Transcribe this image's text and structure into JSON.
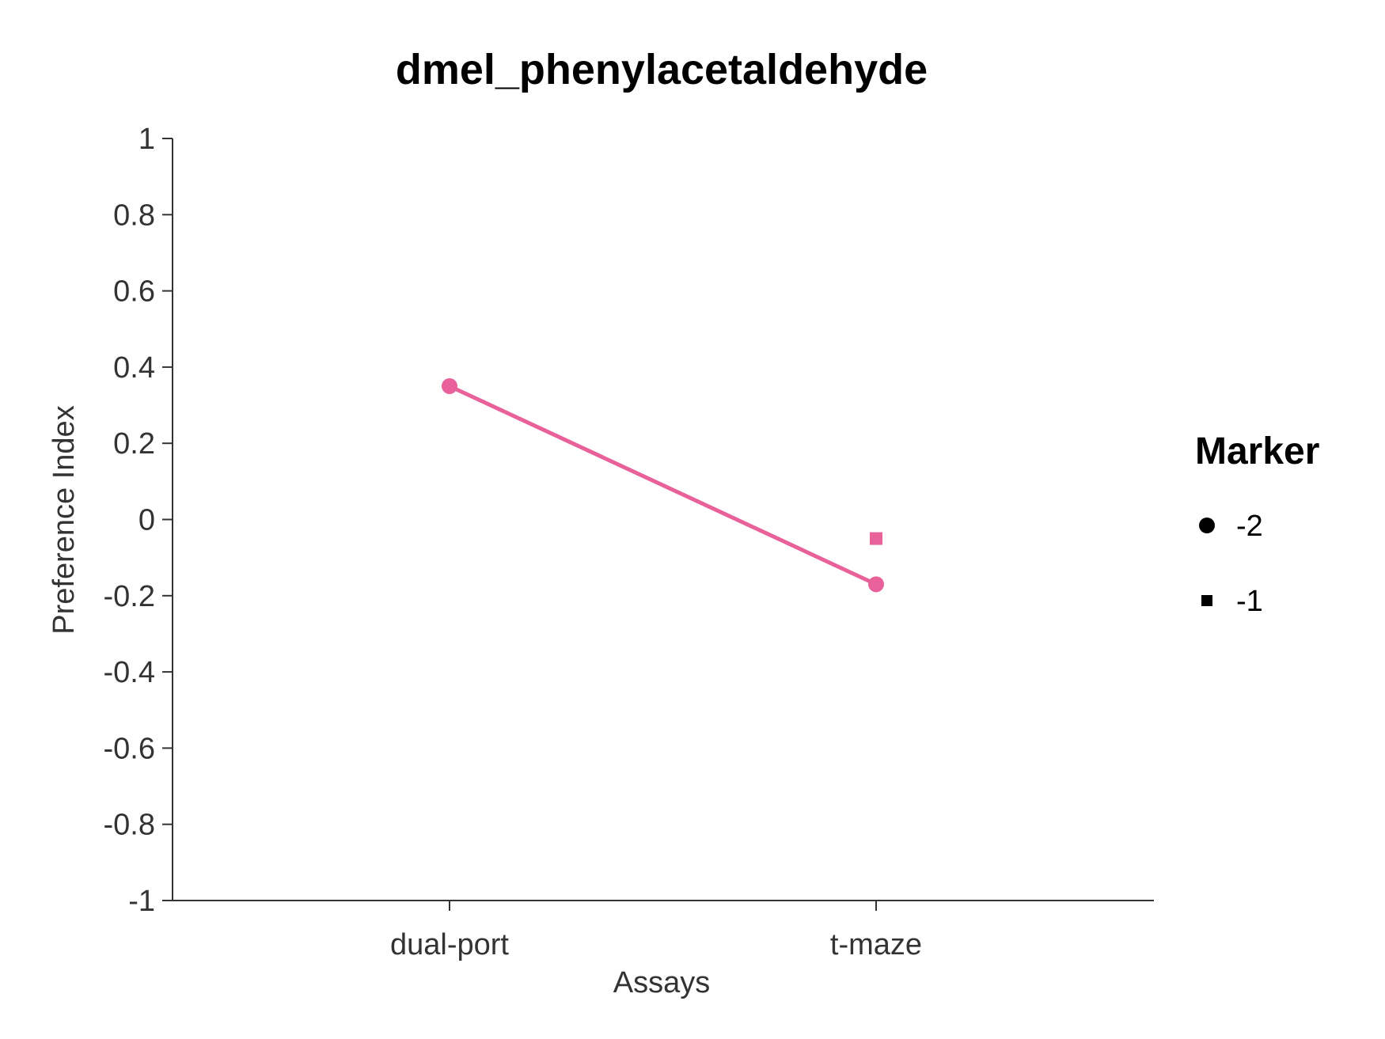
{
  "chart_data": {
    "type": "line",
    "title": "dmel_phenylacetaldehyde",
    "xlabel": "Assays",
    "ylabel": "Preference Index",
    "categories": [
      "dual-port",
      "t-maze"
    ],
    "ylim": [
      -1,
      1
    ],
    "yticks": [
      1,
      0.8,
      0.6,
      0.4,
      0.2,
      0,
      -0.2,
      -0.4,
      -0.6,
      -0.8,
      -1
    ],
    "ytick_labels": [
      "1",
      "0.8",
      "0.6",
      "0.4",
      "0.2",
      "0",
      "-0.2",
      "-0.4",
      "-0.6",
      "-0.8",
      "-1"
    ],
    "grid": false,
    "legend_position": "right",
    "series": [
      {
        "marker": "circle",
        "connected": true,
        "color": "#e8619a",
        "points": [
          {
            "x": "dual-port",
            "y": 0.35
          },
          {
            "x": "t-maze",
            "y": -0.17
          }
        ]
      },
      {
        "marker": "square",
        "connected": false,
        "color": "#e8619a",
        "points": [
          {
            "x": "t-maze",
            "y": -0.05
          }
        ]
      }
    ],
    "legend": {
      "title": "Marker",
      "entries": [
        {
          "label": "-2",
          "marker": "circle"
        },
        {
          "label": "-1",
          "marker": "square"
        }
      ]
    }
  }
}
